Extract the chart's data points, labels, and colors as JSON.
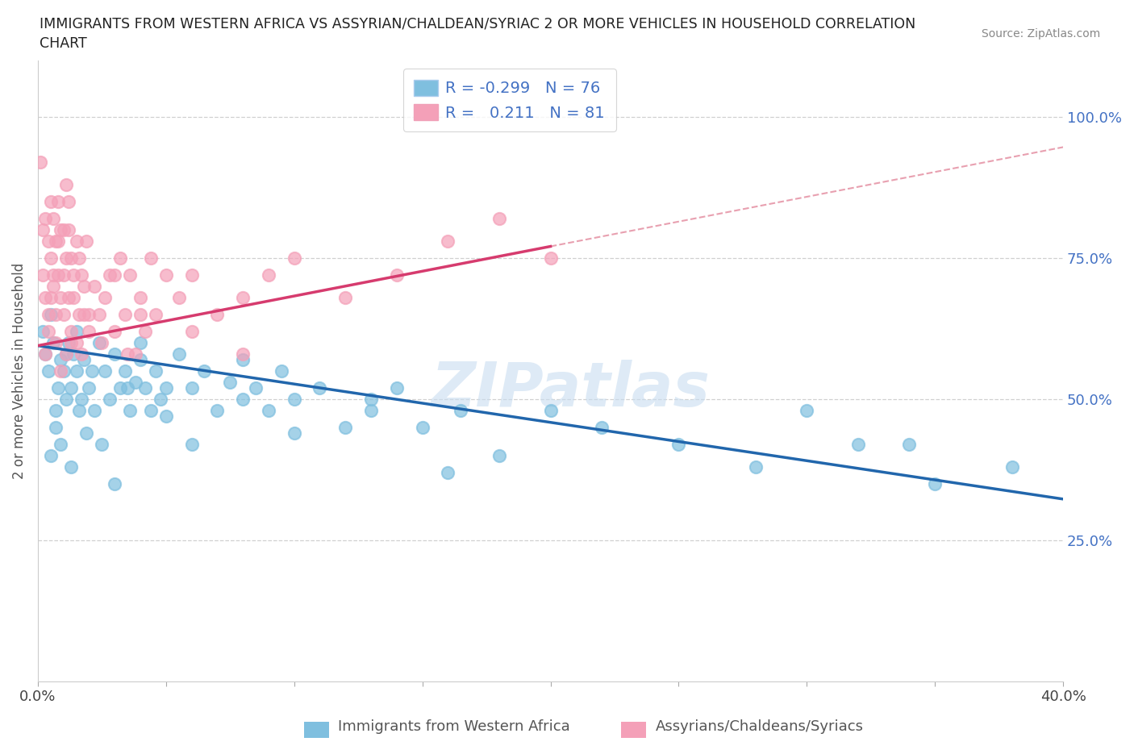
{
  "title_line1": "IMMIGRANTS FROM WESTERN AFRICA VS ASSYRIAN/CHALDEAN/SYRIAC 2 OR MORE VEHICLES IN HOUSEHOLD CORRELATION",
  "title_line2": "CHART",
  "source_text": "Source: ZipAtlas.com",
  "ylabel": "2 or more Vehicles in Household",
  "xlim": [
    0.0,
    0.4
  ],
  "ylim": [
    0.0,
    1.1
  ],
  "xticks": [
    0.0,
    0.05,
    0.1,
    0.15,
    0.2,
    0.25,
    0.3,
    0.35,
    0.4
  ],
  "xticklabels": [
    "0.0%",
    "",
    "",
    "",
    "",
    "",
    "",
    "",
    "40.0%"
  ],
  "yticks_right": [
    0.25,
    0.5,
    0.75,
    1.0
  ],
  "ytick_labels_right": [
    "25.0%",
    "50.0%",
    "75.0%",
    "100.0%"
  ],
  "color_blue": "#7fbfdf",
  "color_pink": "#f4a0b8",
  "color_blue_line": "#2166ac",
  "color_pink_line": "#d63b6e",
  "color_dashed": "#e8a0b0",
  "legend_label1": "Immigrants from Western Africa",
  "legend_label2": "Assyrians/Chaldeans/Syriacs",
  "blue_intercept": 0.595,
  "blue_slope": -0.68,
  "pink_intercept": 0.595,
  "pink_slope": 0.88,
  "blue_x": [
    0.002,
    0.003,
    0.004,
    0.005,
    0.006,
    0.007,
    0.008,
    0.009,
    0.01,
    0.011,
    0.012,
    0.013,
    0.014,
    0.015,
    0.016,
    0.018,
    0.02,
    0.022,
    0.024,
    0.026,
    0.028,
    0.03,
    0.032,
    0.034,
    0.036,
    0.038,
    0.04,
    0.042,
    0.044,
    0.046,
    0.048,
    0.05,
    0.055,
    0.06,
    0.065,
    0.07,
    0.075,
    0.08,
    0.085,
    0.09,
    0.095,
    0.1,
    0.11,
    0.12,
    0.13,
    0.14,
    0.15,
    0.165,
    0.18,
    0.2,
    0.22,
    0.25,
    0.28,
    0.3,
    0.32,
    0.35,
    0.38,
    0.005,
    0.007,
    0.009,
    0.011,
    0.013,
    0.015,
    0.017,
    0.019,
    0.021,
    0.025,
    0.03,
    0.035,
    0.04,
    0.05,
    0.06,
    0.08,
    0.1,
    0.13,
    0.16,
    0.34
  ],
  "blue_y": [
    0.62,
    0.58,
    0.55,
    0.65,
    0.6,
    0.48,
    0.52,
    0.57,
    0.55,
    0.5,
    0.6,
    0.52,
    0.58,
    0.55,
    0.48,
    0.57,
    0.52,
    0.48,
    0.6,
    0.55,
    0.5,
    0.58,
    0.52,
    0.55,
    0.48,
    0.53,
    0.57,
    0.52,
    0.48,
    0.55,
    0.5,
    0.52,
    0.58,
    0.52,
    0.55,
    0.48,
    0.53,
    0.57,
    0.52,
    0.48,
    0.55,
    0.5,
    0.52,
    0.45,
    0.48,
    0.52,
    0.45,
    0.48,
    0.4,
    0.48,
    0.45,
    0.42,
    0.38,
    0.48,
    0.42,
    0.35,
    0.38,
    0.4,
    0.45,
    0.42,
    0.58,
    0.38,
    0.62,
    0.5,
    0.44,
    0.55,
    0.42,
    0.35,
    0.52,
    0.6,
    0.47,
    0.42,
    0.5,
    0.44,
    0.5,
    0.37,
    0.42
  ],
  "pink_x": [
    0.001,
    0.002,
    0.002,
    0.003,
    0.003,
    0.004,
    0.004,
    0.005,
    0.005,
    0.006,
    0.006,
    0.007,
    0.007,
    0.008,
    0.008,
    0.009,
    0.009,
    0.01,
    0.01,
    0.011,
    0.011,
    0.012,
    0.012,
    0.013,
    0.013,
    0.014,
    0.015,
    0.016,
    0.017,
    0.018,
    0.019,
    0.02,
    0.022,
    0.024,
    0.026,
    0.028,
    0.03,
    0.032,
    0.034,
    0.036,
    0.038,
    0.04,
    0.042,
    0.044,
    0.046,
    0.05,
    0.055,
    0.06,
    0.07,
    0.08,
    0.09,
    0.1,
    0.12,
    0.14,
    0.16,
    0.18,
    0.2,
    0.003,
    0.004,
    0.005,
    0.006,
    0.007,
    0.008,
    0.009,
    0.01,
    0.011,
    0.012,
    0.013,
    0.014,
    0.015,
    0.016,
    0.017,
    0.018,
    0.02,
    0.025,
    0.03,
    0.035,
    0.04,
    0.06,
    0.08
  ],
  "pink_y": [
    0.92,
    0.72,
    0.8,
    0.82,
    0.68,
    0.78,
    0.65,
    0.75,
    0.85,
    0.82,
    0.7,
    0.78,
    0.65,
    0.72,
    0.85,
    0.68,
    0.8,
    0.72,
    0.65,
    0.75,
    0.88,
    0.8,
    0.68,
    0.75,
    0.6,
    0.72,
    0.78,
    0.65,
    0.72,
    0.65,
    0.78,
    0.62,
    0.7,
    0.65,
    0.68,
    0.72,
    0.62,
    0.75,
    0.65,
    0.72,
    0.58,
    0.68,
    0.62,
    0.75,
    0.65,
    0.72,
    0.68,
    0.72,
    0.65,
    0.68,
    0.72,
    0.75,
    0.68,
    0.72,
    0.78,
    0.82,
    0.75,
    0.58,
    0.62,
    0.68,
    0.72,
    0.6,
    0.78,
    0.55,
    0.8,
    0.58,
    0.85,
    0.62,
    0.68,
    0.6,
    0.75,
    0.58,
    0.7,
    0.65,
    0.6,
    0.72,
    0.58,
    0.65,
    0.62,
    0.58
  ]
}
